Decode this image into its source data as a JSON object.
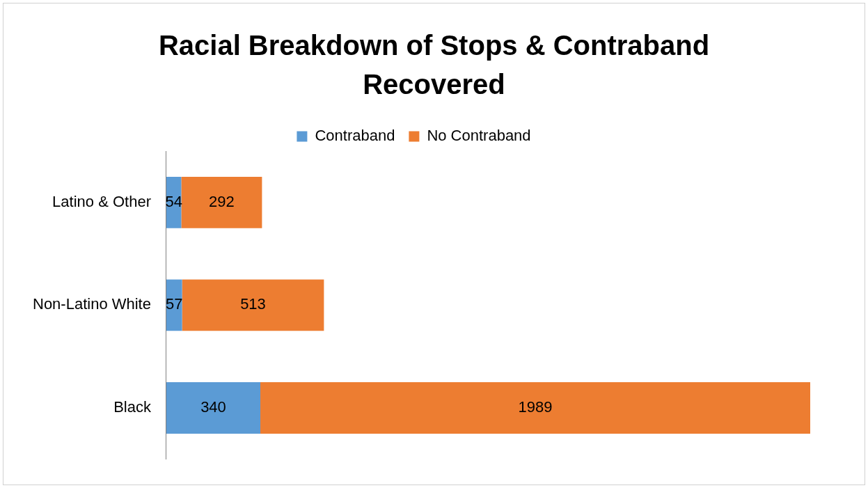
{
  "chart_data": {
    "type": "bar",
    "title": "Racial Breakdown of Stops & Contraband Recovered",
    "orientation": "horizontal",
    "stacked": true,
    "categories": [
      "Latino & Other",
      "Non-Latino White",
      "Black"
    ],
    "series": [
      {
        "name": "Contraband",
        "color": "#5b9bd5",
        "values": [
          54,
          57,
          340
        ]
      },
      {
        "name": "No Contraband",
        "color": "#ed7d31",
        "values": [
          292,
          513,
          1989
        ]
      }
    ],
    "data_labels": true,
    "legend": "top"
  }
}
